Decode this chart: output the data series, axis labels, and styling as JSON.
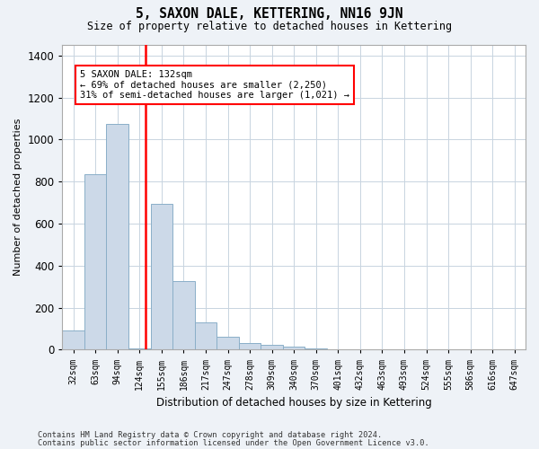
{
  "title": "5, SAXON DALE, KETTERING, NN16 9JN",
  "subtitle": "Size of property relative to detached houses in Kettering",
  "xlabel": "Distribution of detached houses by size in Kettering",
  "ylabel": "Number of detached properties",
  "categories": [
    "32sqm",
    "63sqm",
    "94sqm",
    "124sqm",
    "155sqm",
    "186sqm",
    "217sqm",
    "247sqm",
    "278sqm",
    "309sqm",
    "340sqm",
    "370sqm",
    "401sqm",
    "432sqm",
    "463sqm",
    "493sqm",
    "524sqm",
    "555sqm",
    "586sqm",
    "616sqm",
    "647sqm"
  ],
  "values": [
    93,
    835,
    1075,
    5,
    693,
    328,
    128,
    62,
    32,
    22,
    15,
    8,
    3,
    1,
    1,
    0,
    0,
    0,
    0,
    0,
    0
  ],
  "bar_color": "#ccd9e8",
  "bar_edge_color": "#8aafc8",
  "vline_color": "red",
  "annotation_line1": "5 SAXON DALE: 132sqm",
  "annotation_line2": "← 69% of detached houses are smaller (2,250)",
  "annotation_line3": "31% of semi-detached houses are larger (1,021) →",
  "annotation_box_color": "white",
  "annotation_box_edge": "red",
  "ylim": [
    0,
    1450
  ],
  "yticks": [
    0,
    200,
    400,
    600,
    800,
    1000,
    1200,
    1400
  ],
  "footnote1": "Contains HM Land Registry data © Crown copyright and database right 2024.",
  "footnote2": "Contains public sector information licensed under the Open Government Licence v3.0.",
  "bg_color": "#eef2f7",
  "plot_bg_color": "#ffffff",
  "grid_color": "#c8d4e0"
}
